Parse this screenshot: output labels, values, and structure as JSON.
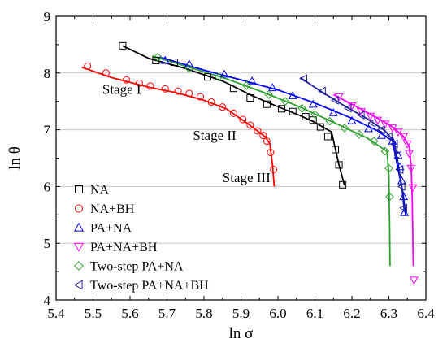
{
  "chart_data": {
    "type": "scatter",
    "xlabel": "ln σ",
    "ylabel": "ln θ",
    "xlim": [
      5.4,
      6.4
    ],
    "ylim": [
      4,
      9
    ],
    "xticks": [
      "5.4",
      "5.5",
      "5.6",
      "5.7",
      "5.8",
      "5.9",
      "6.0",
      "6.1",
      "6.2",
      "6.3",
      "6.4"
    ],
    "yticks": [
      "4",
      "5",
      "6",
      "7",
      "8",
      "9"
    ],
    "grid": "horizontal",
    "legend_position": "bottom-left",
    "annotations": [
      {
        "text": "Stage I",
        "x": 5.525,
        "y": 7.63
      },
      {
        "text": "Stage II",
        "x": 5.77,
        "y": 6.82
      },
      {
        "text": "Stage III",
        "x": 5.85,
        "y": 6.08
      }
    ],
    "series": [
      {
        "name": "NA",
        "color": "#000000",
        "marker": "square",
        "points": [
          [
            5.58,
            8.48
          ],
          [
            5.67,
            8.22
          ],
          [
            5.72,
            8.19
          ],
          [
            5.81,
            7.93
          ],
          [
            5.88,
            7.73
          ],
          [
            5.925,
            7.56
          ],
          [
            5.97,
            7.45
          ],
          [
            6.01,
            7.37
          ],
          [
            6.04,
            7.32
          ],
          [
            6.075,
            7.23
          ],
          [
            6.095,
            7.17
          ],
          [
            6.115,
            7.05
          ],
          [
            6.135,
            6.88
          ],
          [
            6.155,
            6.65
          ],
          [
            6.165,
            6.38
          ],
          [
            6.175,
            6.03
          ]
        ],
        "fit": [
          [
            5.58,
            8.48
          ],
          [
            5.65,
            8.26
          ],
          [
            5.75,
            8.08
          ],
          [
            5.85,
            7.86
          ],
          [
            5.93,
            7.6
          ],
          [
            5.995,
            7.42
          ],
          [
            6.06,
            7.25
          ],
          [
            6.1,
            7.13
          ],
          [
            6.145,
            6.96
          ],
          [
            6.165,
            6.38
          ],
          [
            6.18,
            6.02
          ]
        ]
      },
      {
        "name": "NA+BH",
        "color": "#ff0000",
        "marker": "circle",
        "points": [
          [
            5.485,
            8.12
          ],
          [
            5.535,
            8.0
          ],
          [
            5.59,
            7.88
          ],
          [
            5.625,
            7.82
          ],
          [
            5.655,
            7.77
          ],
          [
            5.695,
            7.72
          ],
          [
            5.73,
            7.68
          ],
          [
            5.76,
            7.64
          ],
          [
            5.79,
            7.58
          ],
          [
            5.82,
            7.49
          ],
          [
            5.85,
            7.4
          ],
          [
            5.88,
            7.29
          ],
          [
            5.905,
            7.18
          ],
          [
            5.925,
            7.08
          ],
          [
            5.945,
            6.98
          ],
          [
            5.96,
            6.9
          ],
          [
            5.97,
            6.8
          ],
          [
            5.98,
            6.6
          ],
          [
            5.988,
            6.3
          ]
        ],
        "fit": [
          [
            5.47,
            8.1
          ],
          [
            5.55,
            7.92
          ],
          [
            5.65,
            7.75
          ],
          [
            5.72,
            7.66
          ],
          [
            5.8,
            7.52
          ],
          [
            5.86,
            7.37
          ],
          [
            5.92,
            7.1
          ],
          [
            5.965,
            6.88
          ],
          [
            5.978,
            6.75
          ],
          [
            5.985,
            6.4
          ],
          [
            5.99,
            6.0
          ]
        ]
      },
      {
        "name": "PA+NA",
        "color": "#0000ff",
        "marker": "triangle-up",
        "points": [
          [
            5.695,
            8.22
          ],
          [
            5.76,
            8.16
          ],
          [
            5.855,
            7.98
          ],
          [
            5.93,
            7.86
          ],
          [
            5.985,
            7.74
          ],
          [
            6.04,
            7.6
          ],
          [
            6.095,
            7.45
          ],
          [
            6.15,
            7.3
          ],
          [
            6.2,
            7.16
          ],
          [
            6.245,
            7.02
          ],
          [
            6.28,
            6.9
          ],
          [
            6.31,
            6.8
          ],
          [
            6.325,
            6.55
          ],
          [
            6.33,
            6.35
          ],
          [
            6.335,
            6.1
          ],
          [
            6.34,
            5.82
          ],
          [
            6.342,
            5.54
          ]
        ],
        "fit": [
          [
            5.68,
            8.28
          ],
          [
            5.8,
            8.05
          ],
          [
            5.9,
            7.88
          ],
          [
            6.0,
            7.7
          ],
          [
            6.1,
            7.47
          ],
          [
            6.2,
            7.2
          ],
          [
            6.27,
            6.98
          ],
          [
            6.31,
            6.8
          ],
          [
            6.325,
            6.3
          ],
          [
            6.338,
            5.9
          ],
          [
            6.345,
            5.5
          ]
        ]
      },
      {
        "name": "PA+NA+BH",
        "color": "#ff00ff",
        "marker": "triangle-down",
        "points": [
          [
            6.165,
            7.58
          ],
          [
            6.2,
            7.42
          ],
          [
            6.225,
            7.32
          ],
          [
            6.25,
            7.24
          ],
          [
            6.27,
            7.17
          ],
          [
            6.29,
            7.1
          ],
          [
            6.31,
            7.03
          ],
          [
            6.325,
            6.96
          ],
          [
            6.34,
            6.88
          ],
          [
            6.35,
            6.75
          ],
          [
            6.355,
            6.58
          ],
          [
            6.36,
            6.32
          ],
          [
            6.365,
            5.98
          ],
          [
            6.368,
            4.35
          ]
        ],
        "fit": [
          [
            6.15,
            7.62
          ],
          [
            6.22,
            7.38
          ],
          [
            6.27,
            7.2
          ],
          [
            6.31,
            7.05
          ],
          [
            6.34,
            6.88
          ],
          [
            6.355,
            6.7
          ],
          [
            6.36,
            6.4
          ],
          [
            6.363,
            5.8
          ],
          [
            6.365,
            5.0
          ],
          [
            6.366,
            4.6
          ]
        ]
      },
      {
        "name": "Two-step PA+NA",
        "color": "#2ca02c",
        "marker": "diamond",
        "points": [
          [
            5.675,
            8.28
          ],
          [
            5.76,
            8.08
          ],
          [
            5.84,
            7.93
          ],
          [
            5.915,
            7.78
          ],
          [
            5.975,
            7.62
          ],
          [
            6.02,
            7.5
          ],
          [
            6.065,
            7.38
          ],
          [
            6.1,
            7.27
          ],
          [
            6.14,
            7.15
          ],
          [
            6.18,
            7.03
          ],
          [
            6.22,
            6.92
          ],
          [
            6.26,
            6.8
          ],
          [
            6.29,
            6.62
          ],
          [
            6.3,
            6.32
          ],
          [
            6.302,
            5.82
          ]
        ],
        "fit": [
          [
            5.66,
            8.3
          ],
          [
            5.76,
            8.1
          ],
          [
            5.86,
            7.9
          ],
          [
            5.96,
            7.66
          ],
          [
            6.06,
            7.4
          ],
          [
            6.16,
            7.1
          ],
          [
            6.24,
            6.86
          ],
          [
            6.295,
            6.62
          ],
          [
            6.3,
            6.2
          ],
          [
            6.302,
            5.3
          ],
          [
            6.303,
            4.6
          ]
        ]
      },
      {
        "name": "Two-step PA+NA+BH",
        "color": "#1f1f99",
        "marker": "triangle-left",
        "points": [
          [
            6.07,
            7.9
          ],
          [
            6.12,
            7.68
          ],
          [
            6.155,
            7.52
          ],
          [
            6.19,
            7.38
          ],
          [
            6.225,
            7.26
          ],
          [
            6.255,
            7.12
          ],
          [
            6.28,
            7.0
          ],
          [
            6.3,
            6.88
          ],
          [
            6.315,
            6.75
          ],
          [
            6.325,
            6.55
          ],
          [
            6.33,
            6.3
          ],
          [
            6.335,
            6.0
          ],
          [
            6.34,
            5.62
          ]
        ],
        "fit": [
          [
            6.06,
            7.92
          ],
          [
            6.12,
            7.66
          ],
          [
            6.18,
            7.42
          ],
          [
            6.24,
            7.2
          ],
          [
            6.29,
            6.98
          ],
          [
            6.315,
            6.78
          ],
          [
            6.325,
            6.4
          ],
          [
            6.335,
            6.0
          ],
          [
            6.342,
            5.55
          ]
        ]
      }
    ]
  }
}
